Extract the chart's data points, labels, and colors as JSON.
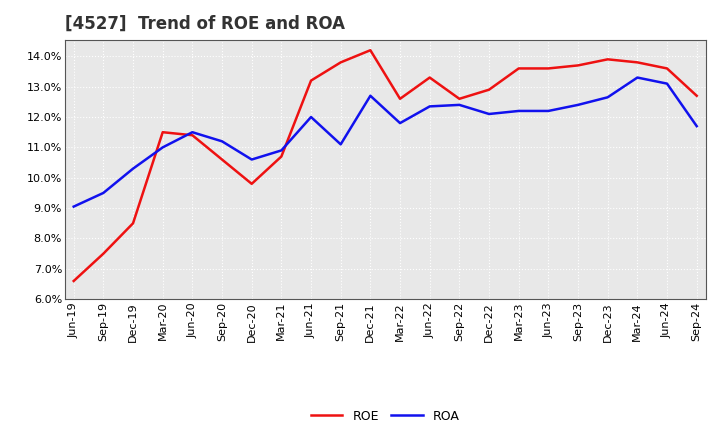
{
  "title": "[4527]  Trend of ROE and ROA",
  "x_labels": [
    "Jun-19",
    "Sep-19",
    "Dec-19",
    "Mar-20",
    "Jun-20",
    "Sep-20",
    "Dec-20",
    "Mar-21",
    "Jun-21",
    "Sep-21",
    "Dec-21",
    "Mar-22",
    "Jun-22",
    "Sep-22",
    "Dec-22",
    "Mar-23",
    "Jun-23",
    "Sep-23",
    "Dec-23",
    "Mar-24",
    "Jun-24",
    "Sep-24"
  ],
  "roe": [
    6.6,
    7.5,
    8.5,
    11.5,
    11.4,
    10.6,
    9.8,
    10.7,
    13.2,
    13.8,
    14.2,
    12.6,
    13.3,
    12.6,
    12.9,
    13.6,
    13.6,
    13.7,
    13.9,
    13.8,
    13.6,
    12.7
  ],
  "roa": [
    9.05,
    9.5,
    10.3,
    11.0,
    11.5,
    11.2,
    10.6,
    10.9,
    12.0,
    11.1,
    12.7,
    11.8,
    12.35,
    12.4,
    12.1,
    12.2,
    12.2,
    12.4,
    12.65,
    13.3,
    13.1,
    11.7
  ],
  "roe_color": "#ee1111",
  "roa_color": "#1111ee",
  "ylim_min": 6.0,
  "ylim_max": 14.55,
  "yticks": [
    6.0,
    7.0,
    8.0,
    9.0,
    10.0,
    11.0,
    12.0,
    13.0,
    14.0
  ],
  "bg_color": "#ffffff",
  "plot_bg_color": "#e8e8e8",
  "grid_color": "#ffffff",
  "title_fontsize": 12,
  "axis_fontsize": 8,
  "legend_fontsize": 9,
  "line_width": 1.8
}
